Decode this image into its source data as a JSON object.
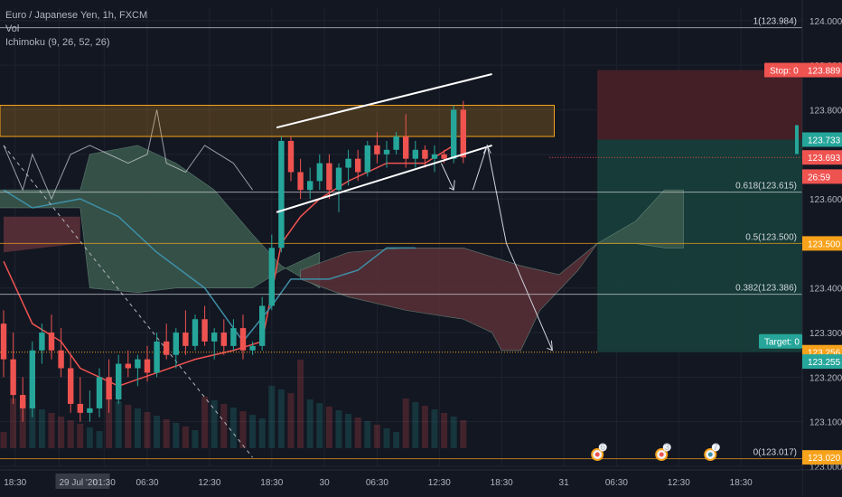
{
  "legend": {
    "symbol": "Euro / Japanese Yen, 1h, FXCM",
    "vol": "Vol",
    "ichimoku": "Ichimoku (9, 26, 52, 26)"
  },
  "colors": {
    "background": "#131722",
    "up": "#26a69a",
    "down": "#ef5350",
    "tenkan": "#ef5350",
    "kijun": "#3d8fa6",
    "cloud_bull": "#3b5a4e",
    "cloud_bear": "#5a3038",
    "lagging": "#d1d4dc",
    "orange": "#f7a21b",
    "stop_zone": "#4a2027",
    "target_zone": "#173f3b"
  },
  "chart_data": {
    "type": "candlestick",
    "title": "Euro / Japanese Yen, 1h, FXCM",
    "ylim": [
      123.0,
      124.03
    ],
    "y_ticks": [
      "124.000",
      "123.900",
      "123.800",
      "123.700",
      "123.600",
      "123.500",
      "123.400",
      "123.300",
      "123.200",
      "123.100",
      "123.000"
    ],
    "x_ticks": [
      {
        "label": "18:30",
        "i": 1.2
      },
      {
        "label": "29 Jul '20",
        "i": 5.8,
        "highlight": true
      },
      {
        "label": "01:30",
        "i": 10.5
      },
      {
        "label": "06:30",
        "i": 15.0
      },
      {
        "label": "12:30",
        "i": 21.5
      },
      {
        "label": "18:30",
        "i": 28.0
      },
      {
        "label": "30",
        "i": 33.5
      },
      {
        "label": "06:30",
        "i": 39.0
      },
      {
        "label": "12:30",
        "i": 45.5
      },
      {
        "label": "18:30",
        "i": 52.0
      },
      {
        "label": "31",
        "i": 58.5
      },
      {
        "label": "06:30",
        "i": 64.0
      },
      {
        "label": "12:30",
        "i": 70.5
      },
      {
        "label": "18:30",
        "i": 77.0
      }
    ],
    "candles": [
      [
        123.32,
        123.35,
        123.2,
        123.24
      ],
      [
        123.24,
        123.3,
        123.14,
        123.16
      ],
      [
        123.16,
        123.2,
        123.1,
        123.13
      ],
      [
        123.13,
        123.28,
        123.11,
        123.26
      ],
      [
        123.26,
        123.32,
        123.23,
        123.3
      ],
      [
        123.3,
        123.34,
        123.24,
        123.26
      ],
      [
        123.26,
        123.31,
        123.2,
        123.22
      ],
      [
        123.22,
        123.25,
        123.12,
        123.14
      ],
      [
        123.14,
        123.2,
        123.1,
        123.12
      ],
      [
        123.12,
        123.17,
        123.1,
        123.13
      ],
      [
        123.13,
        123.22,
        123.11,
        123.2
      ],
      [
        123.2,
        123.24,
        123.12,
        123.15
      ],
      [
        123.15,
        123.25,
        123.14,
        123.23
      ],
      [
        123.23,
        123.26,
        123.2,
        123.22
      ],
      [
        123.22,
        123.25,
        123.18,
        123.24
      ],
      [
        123.24,
        123.27,
        123.19,
        123.21
      ],
      [
        123.21,
        123.3,
        123.2,
        123.28
      ],
      [
        123.28,
        123.32,
        123.24,
        123.25
      ],
      [
        123.25,
        123.31,
        123.22,
        123.3
      ],
      [
        123.3,
        123.35,
        123.25,
        123.27
      ],
      [
        123.27,
        123.34,
        123.26,
        123.33
      ],
      [
        123.33,
        123.36,
        123.27,
        123.28
      ],
      [
        123.28,
        123.31,
        123.24,
        123.3
      ],
      [
        123.3,
        123.33,
        123.25,
        123.27
      ],
      [
        123.27,
        123.33,
        123.26,
        123.31
      ],
      [
        123.31,
        123.34,
        123.24,
        123.26
      ],
      [
        123.26,
        123.28,
        123.25,
        123.27
      ],
      [
        123.27,
        123.38,
        123.26,
        123.36
      ],
      [
        123.36,
        123.52,
        123.35,
        123.49
      ],
      [
        123.49,
        123.74,
        123.48,
        123.73
      ],
      [
        123.73,
        123.74,
        123.64,
        123.66
      ],
      [
        123.66,
        123.69,
        123.6,
        123.62
      ],
      [
        123.62,
        123.67,
        123.6,
        123.64
      ],
      [
        123.64,
        123.7,
        123.62,
        123.68
      ],
      [
        123.68,
        123.7,
        123.6,
        123.62
      ],
      [
        123.62,
        123.68,
        123.57,
        123.67
      ],
      [
        123.67,
        123.71,
        123.63,
        123.69
      ],
      [
        123.69,
        123.71,
        123.64,
        123.66
      ],
      [
        123.66,
        123.73,
        123.65,
        123.72
      ],
      [
        123.72,
        123.75,
        123.68,
        123.7
      ],
      [
        123.7,
        123.73,
        123.67,
        123.71
      ],
      [
        123.71,
        123.75,
        123.7,
        123.74
      ],
      [
        123.74,
        123.79,
        123.67,
        123.69
      ],
      [
        123.69,
        123.73,
        123.67,
        123.71
      ],
      [
        123.71,
        123.72,
        123.67,
        123.69
      ],
      [
        123.69,
        123.72,
        123.66,
        123.7
      ],
      [
        123.7,
        123.71,
        123.68,
        123.69
      ],
      [
        123.69,
        123.81,
        123.68,
        123.8
      ],
      [
        123.8,
        123.82,
        123.68,
        123.693
      ]
    ],
    "levels": [
      {
        "price": 123.984,
        "label": "1(123.984)",
        "color": "#d1d4dc"
      },
      {
        "price": 123.615,
        "label": "0.618(123.615)",
        "color": "#d1d4dc"
      },
      {
        "price": 123.5,
        "label": "0.5(123.500)",
        "color": "#f7a21b"
      },
      {
        "price": 123.386,
        "label": "0.382(123.386)",
        "color": "#d1d4dc"
      },
      {
        "price": 123.017,
        "label": "0(123.017)",
        "color": "#f7a21b"
      }
    ],
    "price_tags": [
      {
        "price": 123.889,
        "text": "123.889",
        "bg": "#ef5350"
      },
      {
        "price": 123.733,
        "text": "123.733",
        "bg": "#26a69a",
        "outline": true
      },
      {
        "price": 123.693,
        "text": "123.693",
        "bg": "#ef5350"
      },
      {
        "price": 123.65,
        "text": "26:59",
        "bg": "#ef5350"
      },
      {
        "price": 123.5,
        "text": "123.500",
        "bg": "#f7a21b"
      },
      {
        "price": 123.256,
        "text": "123.256",
        "bg": "#f7a21b"
      },
      {
        "price": 123.235,
        "text": "123.255",
        "bg": "#26a69a"
      },
      {
        "price": 123.02,
        "text": "123.020",
        "bg": "#f7a21b"
      }
    ],
    "position": {
      "stop_label": "Stop: 0",
      "target_label": "Target: 0",
      "stop": 123.889,
      "entry": 123.733,
      "target": 123.256
    },
    "event_badges": [
      {
        "i": 62.0,
        "text": "6"
      },
      {
        "i": 68.7,
        "text": "3"
      },
      {
        "i": 73.8,
        "text": "7"
      }
    ]
  }
}
